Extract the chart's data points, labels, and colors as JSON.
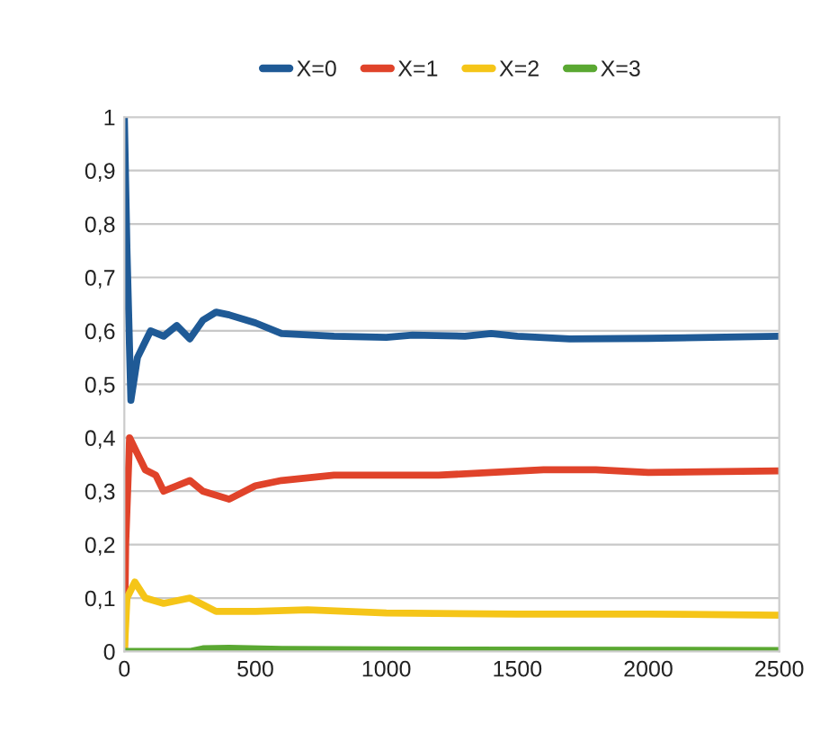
{
  "chart_data": {
    "type": "line",
    "xlim": [
      0,
      2500
    ],
    "xticks": [
      0,
      500,
      1000,
      1500,
      2000,
      2500
    ],
    "ylim": [
      0,
      1
    ],
    "yticks": [
      0,
      {
        "value": 0.1,
        "label": "0,1"
      },
      {
        "value": 0.2,
        "label": "0,2"
      },
      {
        "value": 0.3,
        "label": "0,3"
      },
      {
        "value": 0.4,
        "label": "0,4"
      },
      {
        "value": 0.5,
        "label": "0,5"
      },
      {
        "value": 0.6,
        "label": "0,6"
      },
      {
        "value": 0.7,
        "label": "0,7"
      },
      {
        "value": 0.8,
        "label": "0,8"
      },
      {
        "value": 0.9,
        "label": "0,9"
      },
      1
    ],
    "grid": "y",
    "legend": "top",
    "marker": "none",
    "line_style": "solid",
    "series": [
      {
        "name": "X=0",
        "color": "#1f5a96",
        "x": [
          0,
          10,
          25,
          50,
          80,
          100,
          150,
          200,
          250,
          300,
          350,
          400,
          500,
          600,
          800,
          1000,
          1100,
          1300,
          1400,
          1500,
          1700,
          2000,
          2500
        ],
        "values": [
          1,
          0.75,
          0.47,
          0.55,
          0.58,
          0.6,
          0.59,
          0.61,
          0.585,
          0.62,
          0.635,
          0.63,
          0.615,
          0.595,
          0.59,
          0.588,
          0.592,
          0.59,
          0.595,
          0.59,
          0.585,
          0.586,
          0.59
        ]
      },
      {
        "name": "X=1",
        "color": "#e0432a",
        "x": [
          0,
          5,
          20,
          50,
          80,
          120,
          150,
          200,
          250,
          300,
          400,
          500,
          600,
          800,
          1000,
          1200,
          1400,
          1600,
          1800,
          2000,
          2500
        ],
        "values": [
          0,
          0.2,
          0.4,
          0.37,
          0.34,
          0.33,
          0.3,
          0.31,
          0.32,
          0.3,
          0.285,
          0.31,
          0.32,
          0.33,
          0.33,
          0.33,
          0.335,
          0.34,
          0.34,
          0.335,
          0.338
        ]
      },
      {
        "name": "X=2",
        "color": "#f5c518",
        "x": [
          0,
          10,
          40,
          80,
          150,
          250,
          350,
          500,
          700,
          1000,
          1500,
          2000,
          2500
        ],
        "values": [
          0,
          0.1,
          0.13,
          0.1,
          0.09,
          0.1,
          0.075,
          0.075,
          0.078,
          0.072,
          0.07,
          0.07,
          0.068
        ]
      },
      {
        "name": "X=3",
        "color": "#5aa832",
        "x": [
          0,
          250,
          300,
          400,
          600,
          1000,
          2500
        ],
        "values": [
          0,
          0,
          0.005,
          0.006,
          0.004,
          0.003,
          0.002
        ]
      }
    ]
  }
}
